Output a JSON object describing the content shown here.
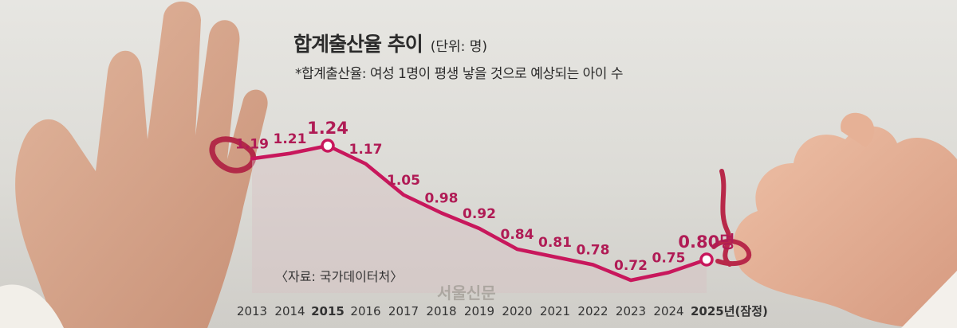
{
  "title": "합계출산율 추이",
  "unit": "(단위: 명)",
  "subtitle": "*합계출산율: 여성 1명이 평생 낳을 것으로 예상되는 아이 수",
  "source": "〈자료: 국가데이터처〉",
  "watermark": "서울신문",
  "colors": {
    "line": "#c8175c",
    "label": "#b01b55",
    "axis_text": "#333333"
  },
  "chart_data": {
    "type": "line",
    "categories": [
      "2013",
      "2014",
      "2015",
      "2016",
      "2017",
      "2018",
      "2019",
      "2020",
      "2021",
      "2022",
      "2023",
      "2024",
      "2025년(잠정)"
    ],
    "series": [
      {
        "values": [
          1.19,
          1.21,
          1.24,
          1.17,
          1.05,
          0.98,
          0.92,
          0.84,
          0.81,
          0.78,
          0.72,
          0.75,
          0.8
        ]
      }
    ],
    "data_labels": [
      "1.19",
      "1.21",
      "1.24",
      "1.17",
      "1.05",
      "0.98",
      "0.92",
      "0.84",
      "0.81",
      "0.78",
      "0.72",
      "0.75",
      "0.80명"
    ],
    "highlight": [
      "2015",
      "2025년(잠정)"
    ],
    "title": "합계출산율 추이",
    "ylabel": "",
    "xlabel": "",
    "grid": false,
    "legend": "none"
  }
}
